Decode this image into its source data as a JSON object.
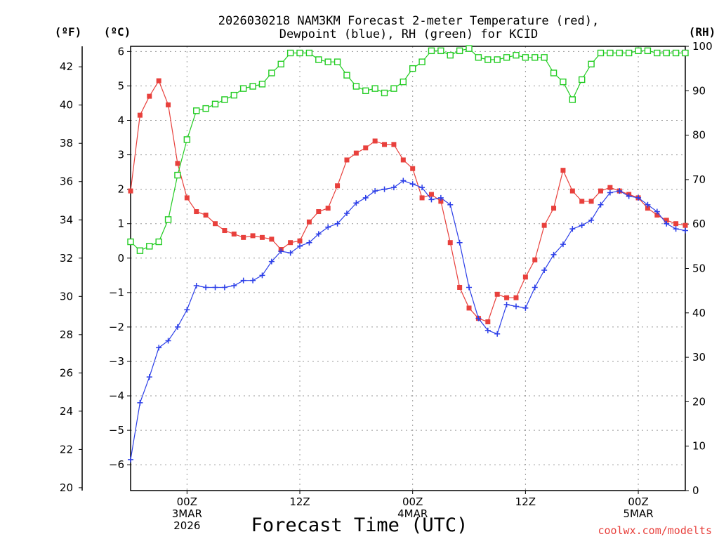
{
  "chart_data": {
    "type": "line",
    "title": "2026030218 NAM3KM Forecast 2-meter Temperature (red),",
    "subtitle": "Dewpoint (blue), RH (green) for KCID",
    "xlabel": "Forecast Time (UTC)",
    "credit": "coolwx.com/modelts",
    "y_label_left_outer": "(ºF)",
    "y_label_left_inner": "(ºC)",
    "y_label_right": "(RH)",
    "x_range_hours": [
      -6,
      53
    ],
    "c_range": [
      -6.75,
      6.15
    ],
    "f_ticks": [
      20,
      22,
      24,
      26,
      28,
      30,
      32,
      34,
      36,
      38,
      40,
      42
    ],
    "c_ticks": [
      -6,
      -5,
      -4,
      -3,
      -2,
      -1,
      0,
      1,
      2,
      3,
      4,
      5,
      6
    ],
    "rh_ticks": [
      0,
      10,
      20,
      30,
      40,
      50,
      60,
      70,
      80,
      90,
      100
    ],
    "rh_range": [
      0,
      100
    ],
    "x_ticks": [
      {
        "hour": 0,
        "lines": [
          "00Z",
          "3MAR",
          "2026"
        ]
      },
      {
        "hour": 12,
        "lines": [
          "12Z"
        ]
      },
      {
        "hour": 24,
        "lines": [
          "00Z",
          "4MAR"
        ]
      },
      {
        "hour": 36,
        "lines": [
          "12Z"
        ]
      },
      {
        "hour": 48,
        "lines": [
          "00Z",
          "5MAR"
        ]
      }
    ],
    "x_hours": [
      -6,
      -5,
      -4,
      -3,
      -2,
      -1,
      0,
      1,
      2,
      3,
      4,
      5,
      6,
      7,
      8,
      9,
      10,
      11,
      12,
      13,
      14,
      15,
      16,
      17,
      18,
      19,
      20,
      21,
      22,
      23,
      24,
      25,
      26,
      27,
      28,
      29,
      30,
      31,
      32,
      33,
      34,
      35,
      36,
      37,
      38,
      39,
      40,
      41,
      42,
      43,
      44,
      45,
      46,
      47,
      48,
      49,
      50,
      51,
      52,
      53
    ],
    "series": [
      {
        "name": "Temperature (ºC)",
        "color": "#e8403c",
        "marker": "filled-square",
        "axis": "celsius",
        "values": [
          1.95,
          4.15,
          4.7,
          5.15,
          4.45,
          2.75,
          1.75,
          1.35,
          1.25,
          1.0,
          0.8,
          0.7,
          0.6,
          0.65,
          0.6,
          0.55,
          0.25,
          0.45,
          0.5,
          1.05,
          1.35,
          1.45,
          2.1,
          2.85,
          3.05,
          3.2,
          3.4,
          3.3,
          3.3,
          2.85,
          2.6,
          1.75,
          1.85,
          1.65,
          0.45,
          -0.85,
          -1.45,
          -1.75,
          -1.85,
          -1.05,
          -1.15,
          -1.15,
          -0.55,
          -0.05,
          0.95,
          1.45,
          2.55,
          1.95,
          1.65,
          1.65,
          1.95,
          2.05,
          1.95,
          1.85,
          1.75,
          1.45,
          1.25,
          1.1,
          1.0,
          0.95
        ]
      },
      {
        "name": "Dewpoint (ºC)",
        "color": "#2b3ee8",
        "marker": "plus",
        "axis": "celsius",
        "values": [
          -5.85,
          -4.2,
          -3.45,
          -2.6,
          -2.4,
          -2.0,
          -1.5,
          -0.8,
          -0.85,
          -0.85,
          -0.85,
          -0.8,
          -0.65,
          -0.65,
          -0.5,
          -0.1,
          0.2,
          0.15,
          0.35,
          0.45,
          0.7,
          0.9,
          1.0,
          1.3,
          1.6,
          1.75,
          1.95,
          2.0,
          2.05,
          2.25,
          2.15,
          2.05,
          1.7,
          1.75,
          1.55,
          0.45,
          -0.85,
          -1.75,
          -2.1,
          -2.2,
          -1.35,
          -1.4,
          -1.45,
          -0.85,
          -0.35,
          0.1,
          0.4,
          0.85,
          0.95,
          1.1,
          1.55,
          1.9,
          1.95,
          1.8,
          1.75,
          1.55,
          1.35,
          1.0,
          0.85,
          0.8
        ]
      },
      {
        "name": "RH (%)",
        "color": "#22cc22",
        "marker": "open-square",
        "axis": "rh",
        "values": [
          56,
          54,
          55,
          56,
          61,
          71,
          79,
          85.5,
          86,
          87,
          88,
          89,
          90.5,
          91,
          91.5,
          94,
          96,
          98.5,
          98.5,
          98.5,
          97,
          96.5,
          96.5,
          93.5,
          91,
          90,
          90.5,
          89.5,
          90.5,
          92,
          95,
          96.5,
          99,
          99,
          98,
          99,
          99.5,
          97.5,
          97,
          97,
          97.5,
          98,
          97.5,
          97.5,
          97.5,
          94,
          92,
          88,
          92.5,
          96,
          98.5,
          98.5,
          98.5,
          98.5,
          99,
          99,
          98.5,
          98.5,
          98.5,
          98.5
        ]
      }
    ]
  }
}
